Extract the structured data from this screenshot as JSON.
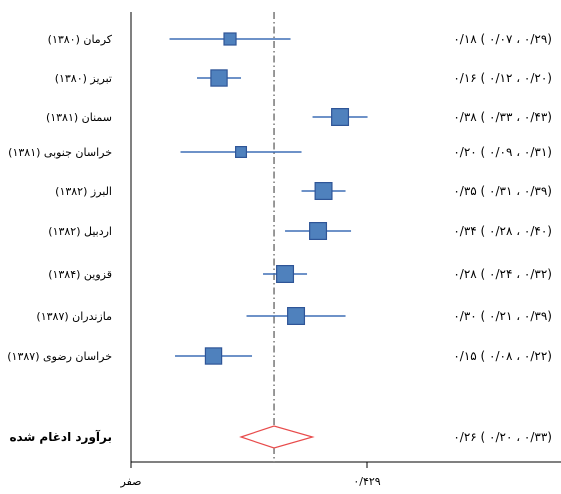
{
  "chart_data": {
    "type": "forest",
    "xlim": [
      0,
      0.429
    ],
    "x_ticks": [
      {
        "value": 0,
        "label": "صفر"
      },
      {
        "value": 0.429,
        "label": "۰/۴۲۹"
      }
    ],
    "reference_line": 0.26,
    "rows": [
      {
        "label": "کرمان (۱۳۸۰)",
        "estimate": 0.18,
        "lower": 0.07,
        "upper": 0.29,
        "ci_text": "۰/۱۸ ( ۰/۰۷ ، ۰/۲۹)",
        "weight": 1.0
      },
      {
        "label": "تبریز (۱۳۸۰)",
        "estimate": 0.16,
        "lower": 0.12,
        "upper": 0.2,
        "ci_text": "۰/۱۶ ( ۰/۱۲ ، ۰/۲۰)",
        "weight": 1.35
      },
      {
        "label": "سمنان (۱۳۸۱)",
        "estimate": 0.38,
        "lower": 0.33,
        "upper": 0.43,
        "ci_text": "۰/۳۸ ( ۰/۳۳ ، ۰/۴۳)",
        "weight": 1.4
      },
      {
        "label": "خراسان جنوبی (۱۳۸۱)",
        "estimate": 0.2,
        "lower": 0.09,
        "upper": 0.31,
        "ci_text": "۰/۲۰ ( ۰/۰۹ ، ۰/۳۱)",
        "weight": 0.9
      },
      {
        "label": "البرز (۱۳۸۲)",
        "estimate": 0.35,
        "lower": 0.31,
        "upper": 0.39,
        "ci_text": "۰/۳۵ ( ۰/۳۱ ، ۰/۳۹)",
        "weight": 1.4
      },
      {
        "label": "اردبیل (۱۳۸۲)",
        "estimate": 0.34,
        "lower": 0.28,
        "upper": 0.4,
        "ci_text": "۰/۳۴ ( ۰/۲۸ ، ۰/۴۰)",
        "weight": 1.4
      },
      {
        "label": "قزوین (۱۳۸۴)",
        "estimate": 0.28,
        "lower": 0.24,
        "upper": 0.32,
        "ci_text": "۰/۲۸ ( ۰/۲۴ ، ۰/۳۲)",
        "weight": 1.4
      },
      {
        "label": "مازندران (۱۳۸۷)",
        "estimate": 0.3,
        "lower": 0.21,
        "upper": 0.39,
        "ci_text": "۰/۳۰ ( ۰/۲۱ ، ۰/۳۹)",
        "weight": 1.4
      },
      {
        "label": "خراسان رضوی (۱۳۸۷)",
        "estimate": 0.15,
        "lower": 0.08,
        "upper": 0.22,
        "ci_text": "۰/۱۵ ( ۰/۰۸ ، ۰/۲۲)",
        "weight": 1.35
      }
    ],
    "pooled": {
      "label": "برآورد ادغام شده",
      "estimate": 0.26,
      "lower": 0.2,
      "upper": 0.33,
      "ci_text": "۰/۲۶ ( ۰/۲۰ ، ۰/۳۳)"
    },
    "colors": {
      "marker": "#4f81bd",
      "marker_border": "#2f5597",
      "line": "#3f6fb5",
      "pooled": "#e84b4b",
      "axis": "#000000"
    }
  }
}
